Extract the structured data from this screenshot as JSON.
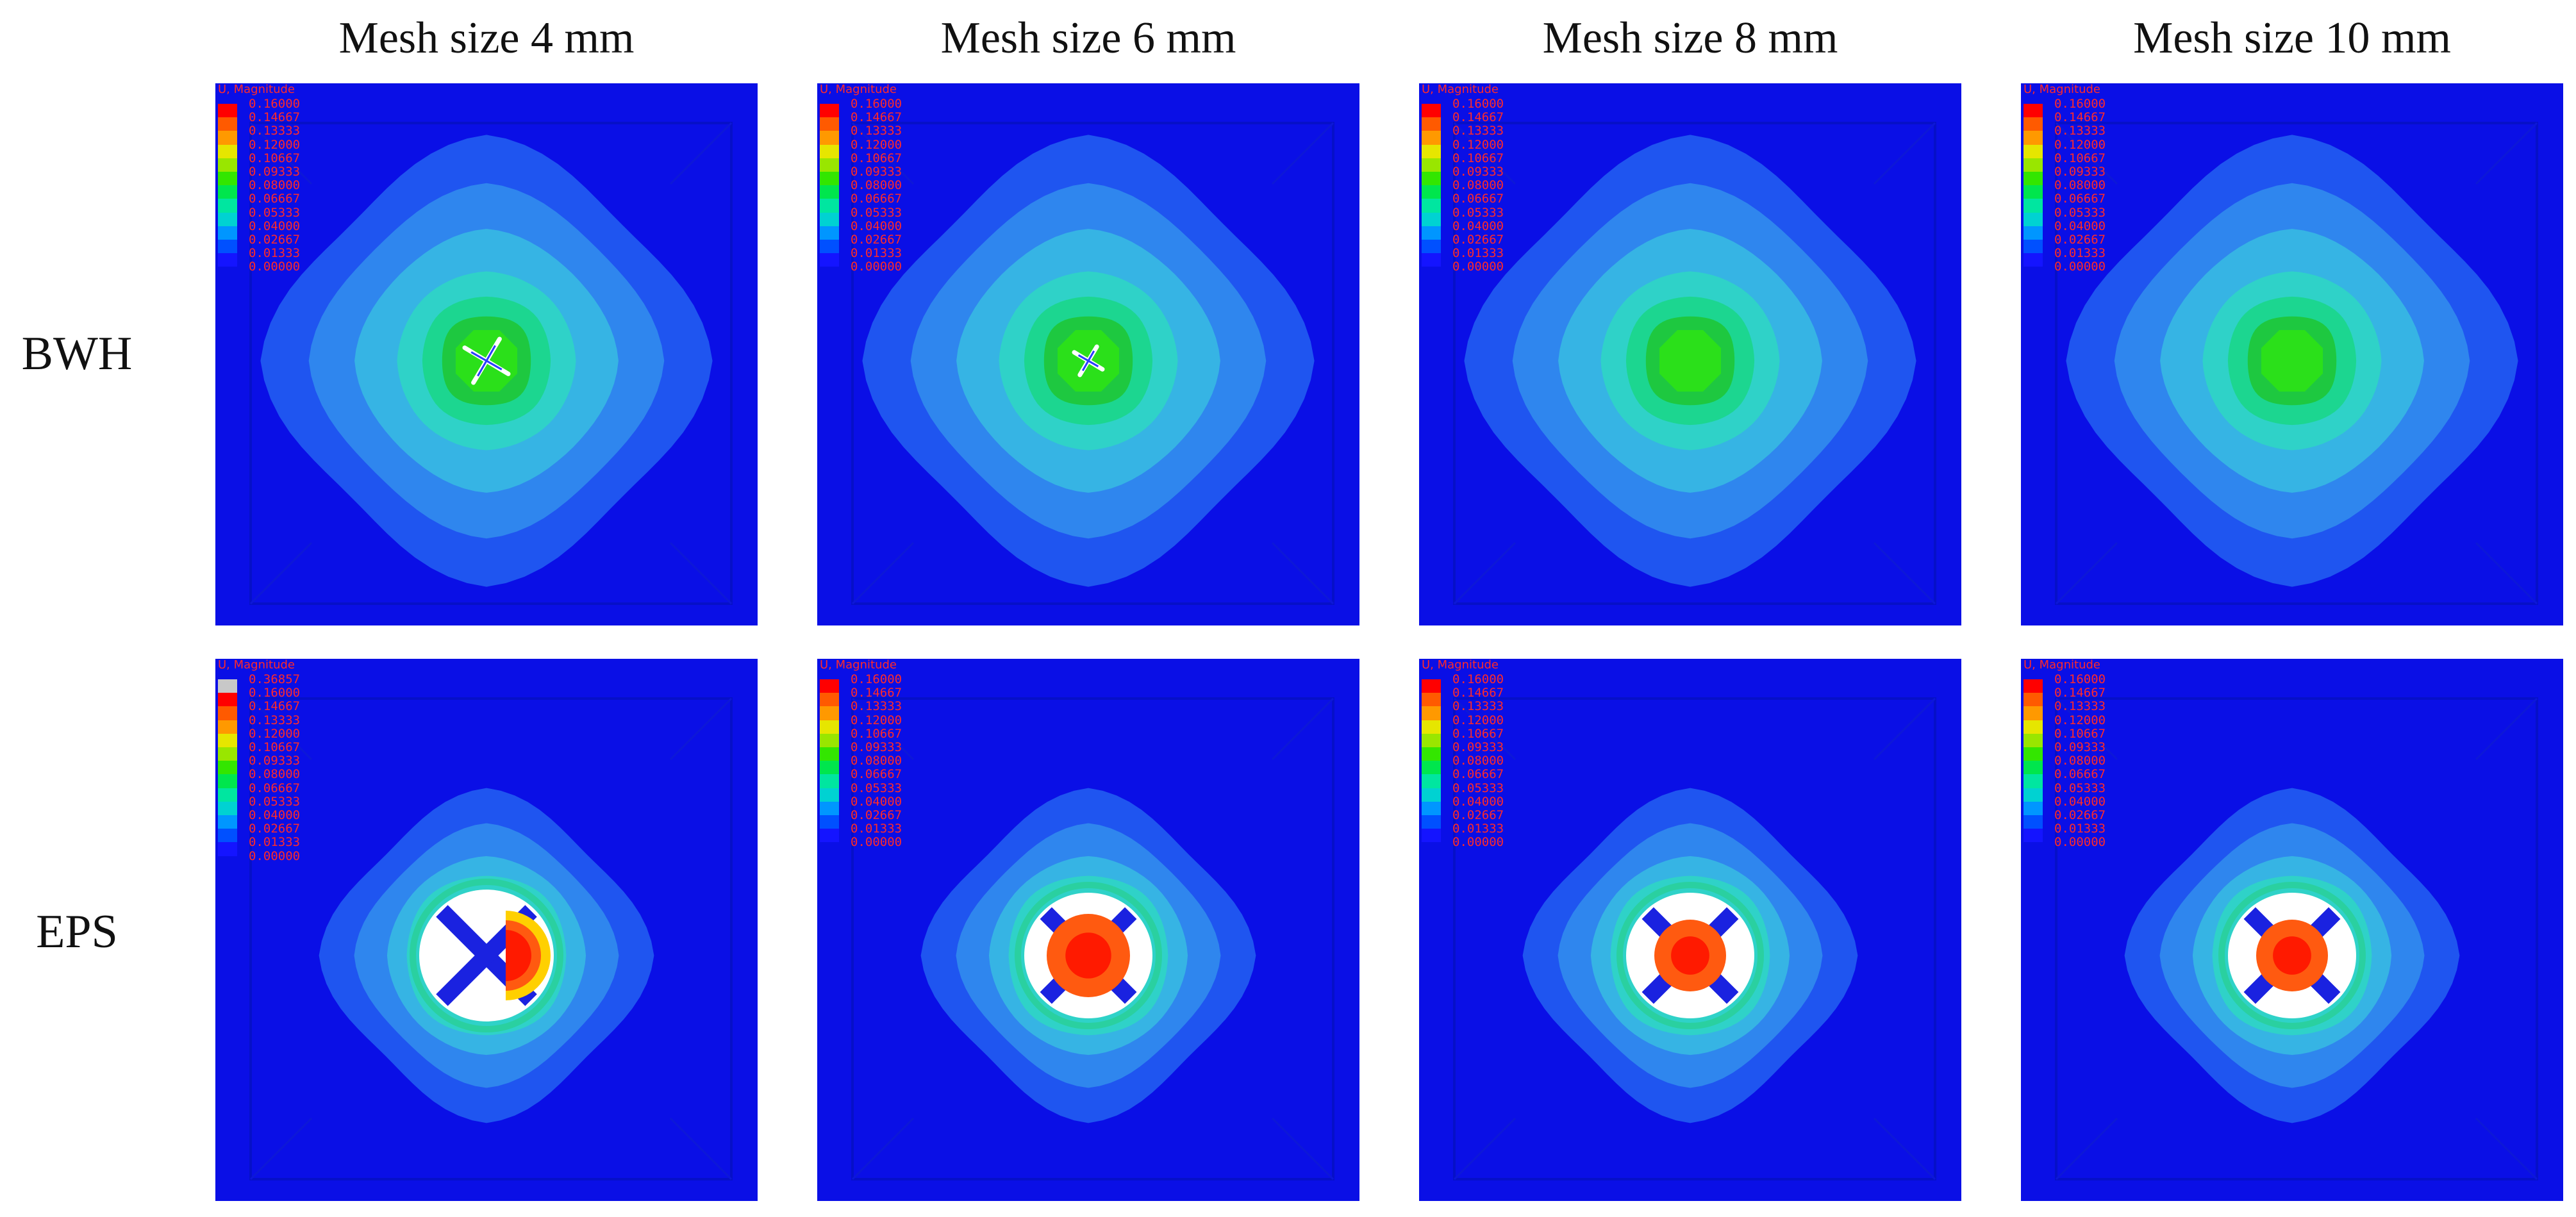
{
  "columns": [
    {
      "title": "Mesh size 4 mm"
    },
    {
      "title": "Mesh size 6 mm"
    },
    {
      "title": "Mesh size 8 mm"
    },
    {
      "title": "Mesh size 10 mm"
    }
  ],
  "rows": [
    {
      "label": "BWH"
    },
    {
      "label": "EPS"
    }
  ],
  "legend_title": "U, Magnitude",
  "legend_standard": {
    "values": [
      "0.16000",
      "0.14667",
      "0.13333",
      "0.12000",
      "0.10667",
      "0.09333",
      "0.08000",
      "0.06667",
      "0.05333",
      "0.04000",
      "0.02667",
      "0.01333",
      "0.00000"
    ],
    "colors": [
      "#ff0000",
      "#ff5a00",
      "#ff9900",
      "#e6e600",
      "#99e600",
      "#33e600",
      "#00e64d",
      "#00e6a0",
      "#00d2d2",
      "#0096ff",
      "#0050ff",
      "#1414ff"
    ]
  },
  "legend_eps_4mm": {
    "values": [
      "0.36857",
      "0.16000",
      "0.14667",
      "0.13333",
      "0.12000",
      "0.10667",
      "0.09333",
      "0.08000",
      "0.06667",
      "0.05333",
      "0.04000",
      "0.02667",
      "0.01333",
      "0.00000"
    ],
    "colors": [
      "#c8c8c8",
      "#ff0000",
      "#ff5a00",
      "#ff9900",
      "#e6e600",
      "#99e600",
      "#33e600",
      "#00e64d",
      "#00e6a0",
      "#00d2d2",
      "#0096ff",
      "#0050ff",
      "#1414ff"
    ]
  },
  "field_colors": {
    "base": "#0a0fe6",
    "frame": "#0610c8",
    "c1": "#1f55f0",
    "c2": "#2f86ee",
    "c3": "#36b4e4",
    "c4": "#2fd2c8",
    "c5": "#1cd690",
    "c6": "#1ec840",
    "c7": "#2be01a",
    "white": "#ffffff",
    "red": "#ff1a00",
    "orange": "#ff5a10",
    "yellow": "#ffd000"
  }
}
